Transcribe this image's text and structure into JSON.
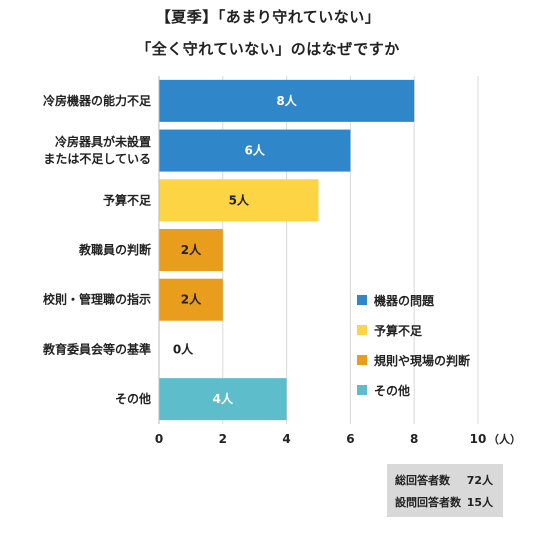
{
  "title_line1": "【夏季】「あまり守れていない」",
  "title_line2": "「全く守れていない」のはなぜですか",
  "chart_data": {
    "type": "bar",
    "orientation": "horizontal",
    "categories": [
      [
        "冷房機器の能力不足"
      ],
      [
        "冷房器具が未設置",
        "または不足している"
      ],
      [
        "予算不足"
      ],
      [
        "教職員の判断"
      ],
      [
        "校則・管理職の指示"
      ],
      [
        "教育委員会等の基準"
      ],
      [
        "その他"
      ]
    ],
    "values": [
      8,
      6,
      5,
      2,
      2,
      0,
      4
    ],
    "value_labels": [
      "8人",
      "6人",
      "5人",
      "2人",
      "2人",
      "0人",
      "4人"
    ],
    "groups": [
      "equipment",
      "equipment",
      "budget",
      "rules",
      "rules",
      "rules",
      "other"
    ],
    "xlim": [
      0,
      10
    ],
    "xticks": [
      0,
      2,
      4,
      6,
      8,
      10
    ],
    "xtick_labels": [
      "0",
      "2",
      "4",
      "6",
      "8",
      "10"
    ],
    "xunit": "（人）",
    "grid": true,
    "legend_position": "right",
    "legend": [
      {
        "key": "equipment",
        "label": "機器の問題",
        "color": "#2f86c8"
      },
      {
        "key": "budget",
        "label": "予算不足",
        "color": "#fcd444"
      },
      {
        "key": "rules",
        "label": "規則や現場の判断",
        "color": "#e99d1c"
      },
      {
        "key": "other",
        "label": "その他",
        "color": "#5dbdca"
      }
    ]
  },
  "totals": {
    "total_label": "総回答者数",
    "total_value": "72人",
    "question_label": "設問回答者数",
    "question_value": "15人"
  }
}
